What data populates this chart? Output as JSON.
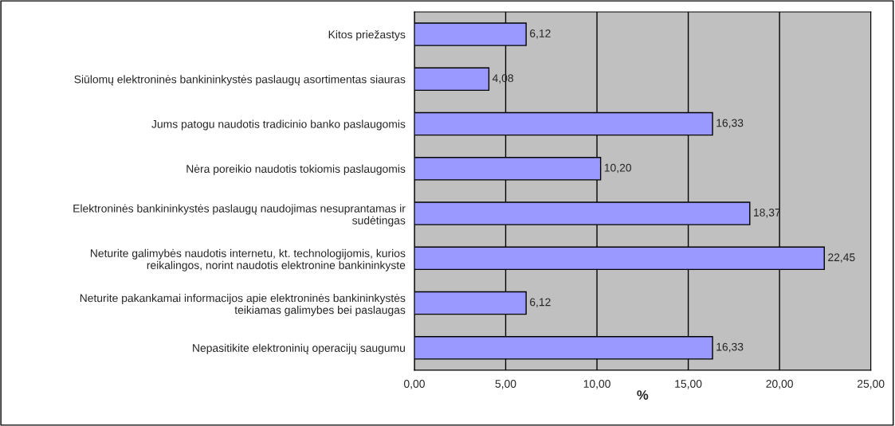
{
  "chart_data": {
    "type": "bar",
    "orientation": "horizontal",
    "xlabel": "%",
    "categories": [
      "Kitos priežastys",
      "Siūlomų elektroninės bankininkystės paslaugų asortimentas siauras",
      "Jums patogu naudotis tradicinio banko paslaugomis",
      "Nėra poreikio naudotis tokiomis paslaugomis",
      "Elektroninės bankininkystės paslaugų naudojimas nesuprantamas ir\nsudėtingas",
      "Neturite galimybės naudotis internetu, kt. technologijomis, kurios\nreikalingos, norint naudotis elektronine bankininkyste",
      "Neturite pakankamai informacijos apie elektroninės bankininkystės\nteikiamas galimybes bei paslaugas",
      "Nepasitikite elektroninių operacijų saugumu"
    ],
    "values": [
      6.12,
      4.08,
      16.33,
      10.2,
      18.37,
      22.45,
      6.12,
      16.33
    ],
    "value_labels": [
      "6,12",
      "4,08",
      "16,33",
      "10,20",
      "18,37",
      "22,45",
      "6,12",
      "16,33"
    ],
    "color": "#9999ff",
    "xlim": [
      0,
      25
    ],
    "xticks": [
      {
        "value": 0,
        "label": "0,00"
      },
      {
        "value": 5,
        "label": "5,00"
      },
      {
        "value": 10,
        "label": "10,00"
      },
      {
        "value": 15,
        "label": "15,00"
      },
      {
        "value": 20,
        "label": "20,00"
      },
      {
        "value": 25,
        "label": "25,00"
      }
    ],
    "grid": "x",
    "legend": false
  }
}
